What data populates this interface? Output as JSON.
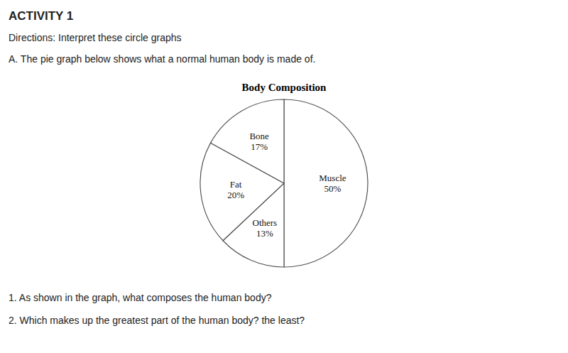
{
  "chart_data": {
    "type": "pie",
    "title": "Body Composition",
    "subtitle": "A. The pie graph below shows what a normal human body is made of.",
    "annotations": [
      "ACTIVITY 1",
      "Directions: Interpret these circle graphs",
      "1. As shown in the graph, what composes the human body?",
      "2. Which makes up the greatest part of the human body? the least?"
    ],
    "categories": [
      "Muscle",
      "Others",
      "Fat",
      "Bone"
    ],
    "values": [
      50,
      13,
      20,
      17
    ],
    "value_labels": [
      "50%",
      "13%",
      "20%",
      "17%"
    ],
    "colors": [
      "#ffffff",
      "#ffffff",
      "#ffffff",
      "#ffffff"
    ],
    "data_labels": true
  }
}
